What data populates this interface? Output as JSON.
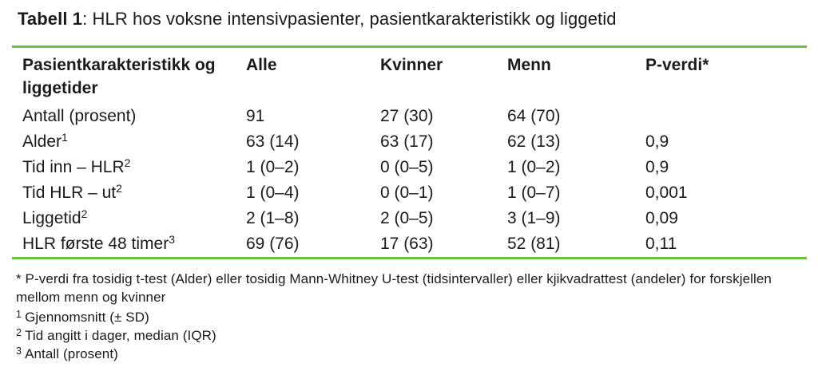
{
  "title": {
    "label": "Tabell 1",
    "text": ": HLR hos voksne intensivpasienter, pasientkarakteristikk og liggetid"
  },
  "table": {
    "headers": [
      "Pasientkarakteristikk og liggetider",
      "Alle",
      "Kvinner",
      "Menn",
      "P-verdi*"
    ],
    "rows": [
      {
        "label": "Antall (prosent)",
        "sup": "",
        "alle": "91",
        "kvinner": "27 (30)",
        "menn": "64 (70)",
        "p": ""
      },
      {
        "label": "Alder",
        "sup": "1",
        "alle": "63 (14)",
        "kvinner": "63 (17)",
        "menn": "62 (13)",
        "p": "0,9"
      },
      {
        "label": "Tid inn – HLR",
        "sup": "2",
        "alle": "1 (0–2)",
        "kvinner": "0 (0–5)",
        "menn": "1 (0–2)",
        "p": "0,9"
      },
      {
        "label": "Tid HLR – ut",
        "sup": "2",
        "alle": "1 (0–4)",
        "kvinner": "0 (0–1)",
        "menn": "1 (0–7)",
        "p": "0,001"
      },
      {
        "label": "Liggetid",
        "sup": "2",
        "alle": "2 (1–8)",
        "kvinner": "2 (0–5)",
        "menn": "3 (1–9)",
        "p": "0,09"
      },
      {
        "label": "HLR første 48 timer",
        "sup": "3",
        "alle": "69 (76)",
        "kvinner": "17 (63)",
        "menn": "52 (81)",
        "p": "0,11"
      }
    ]
  },
  "footnotes": {
    "star": "* P-verdi fra tosidig t-test (Alder) eller tosidig Mann-Whitney U-test (tidsintervaller) eller kjikvadrattest (andeler) for forskjellen mellom menn og kvinner",
    "notes": [
      {
        "sup": "1",
        "text": "Gjennomsnitt (± SD)"
      },
      {
        "sup": "2",
        "text": "Tid angitt i dager, median (IQR)"
      },
      {
        "sup": "3",
        "text": "Antall (prosent)"
      }
    ]
  },
  "colors": {
    "accent_green": "#6fbf44",
    "text": "#1b1b1b"
  }
}
